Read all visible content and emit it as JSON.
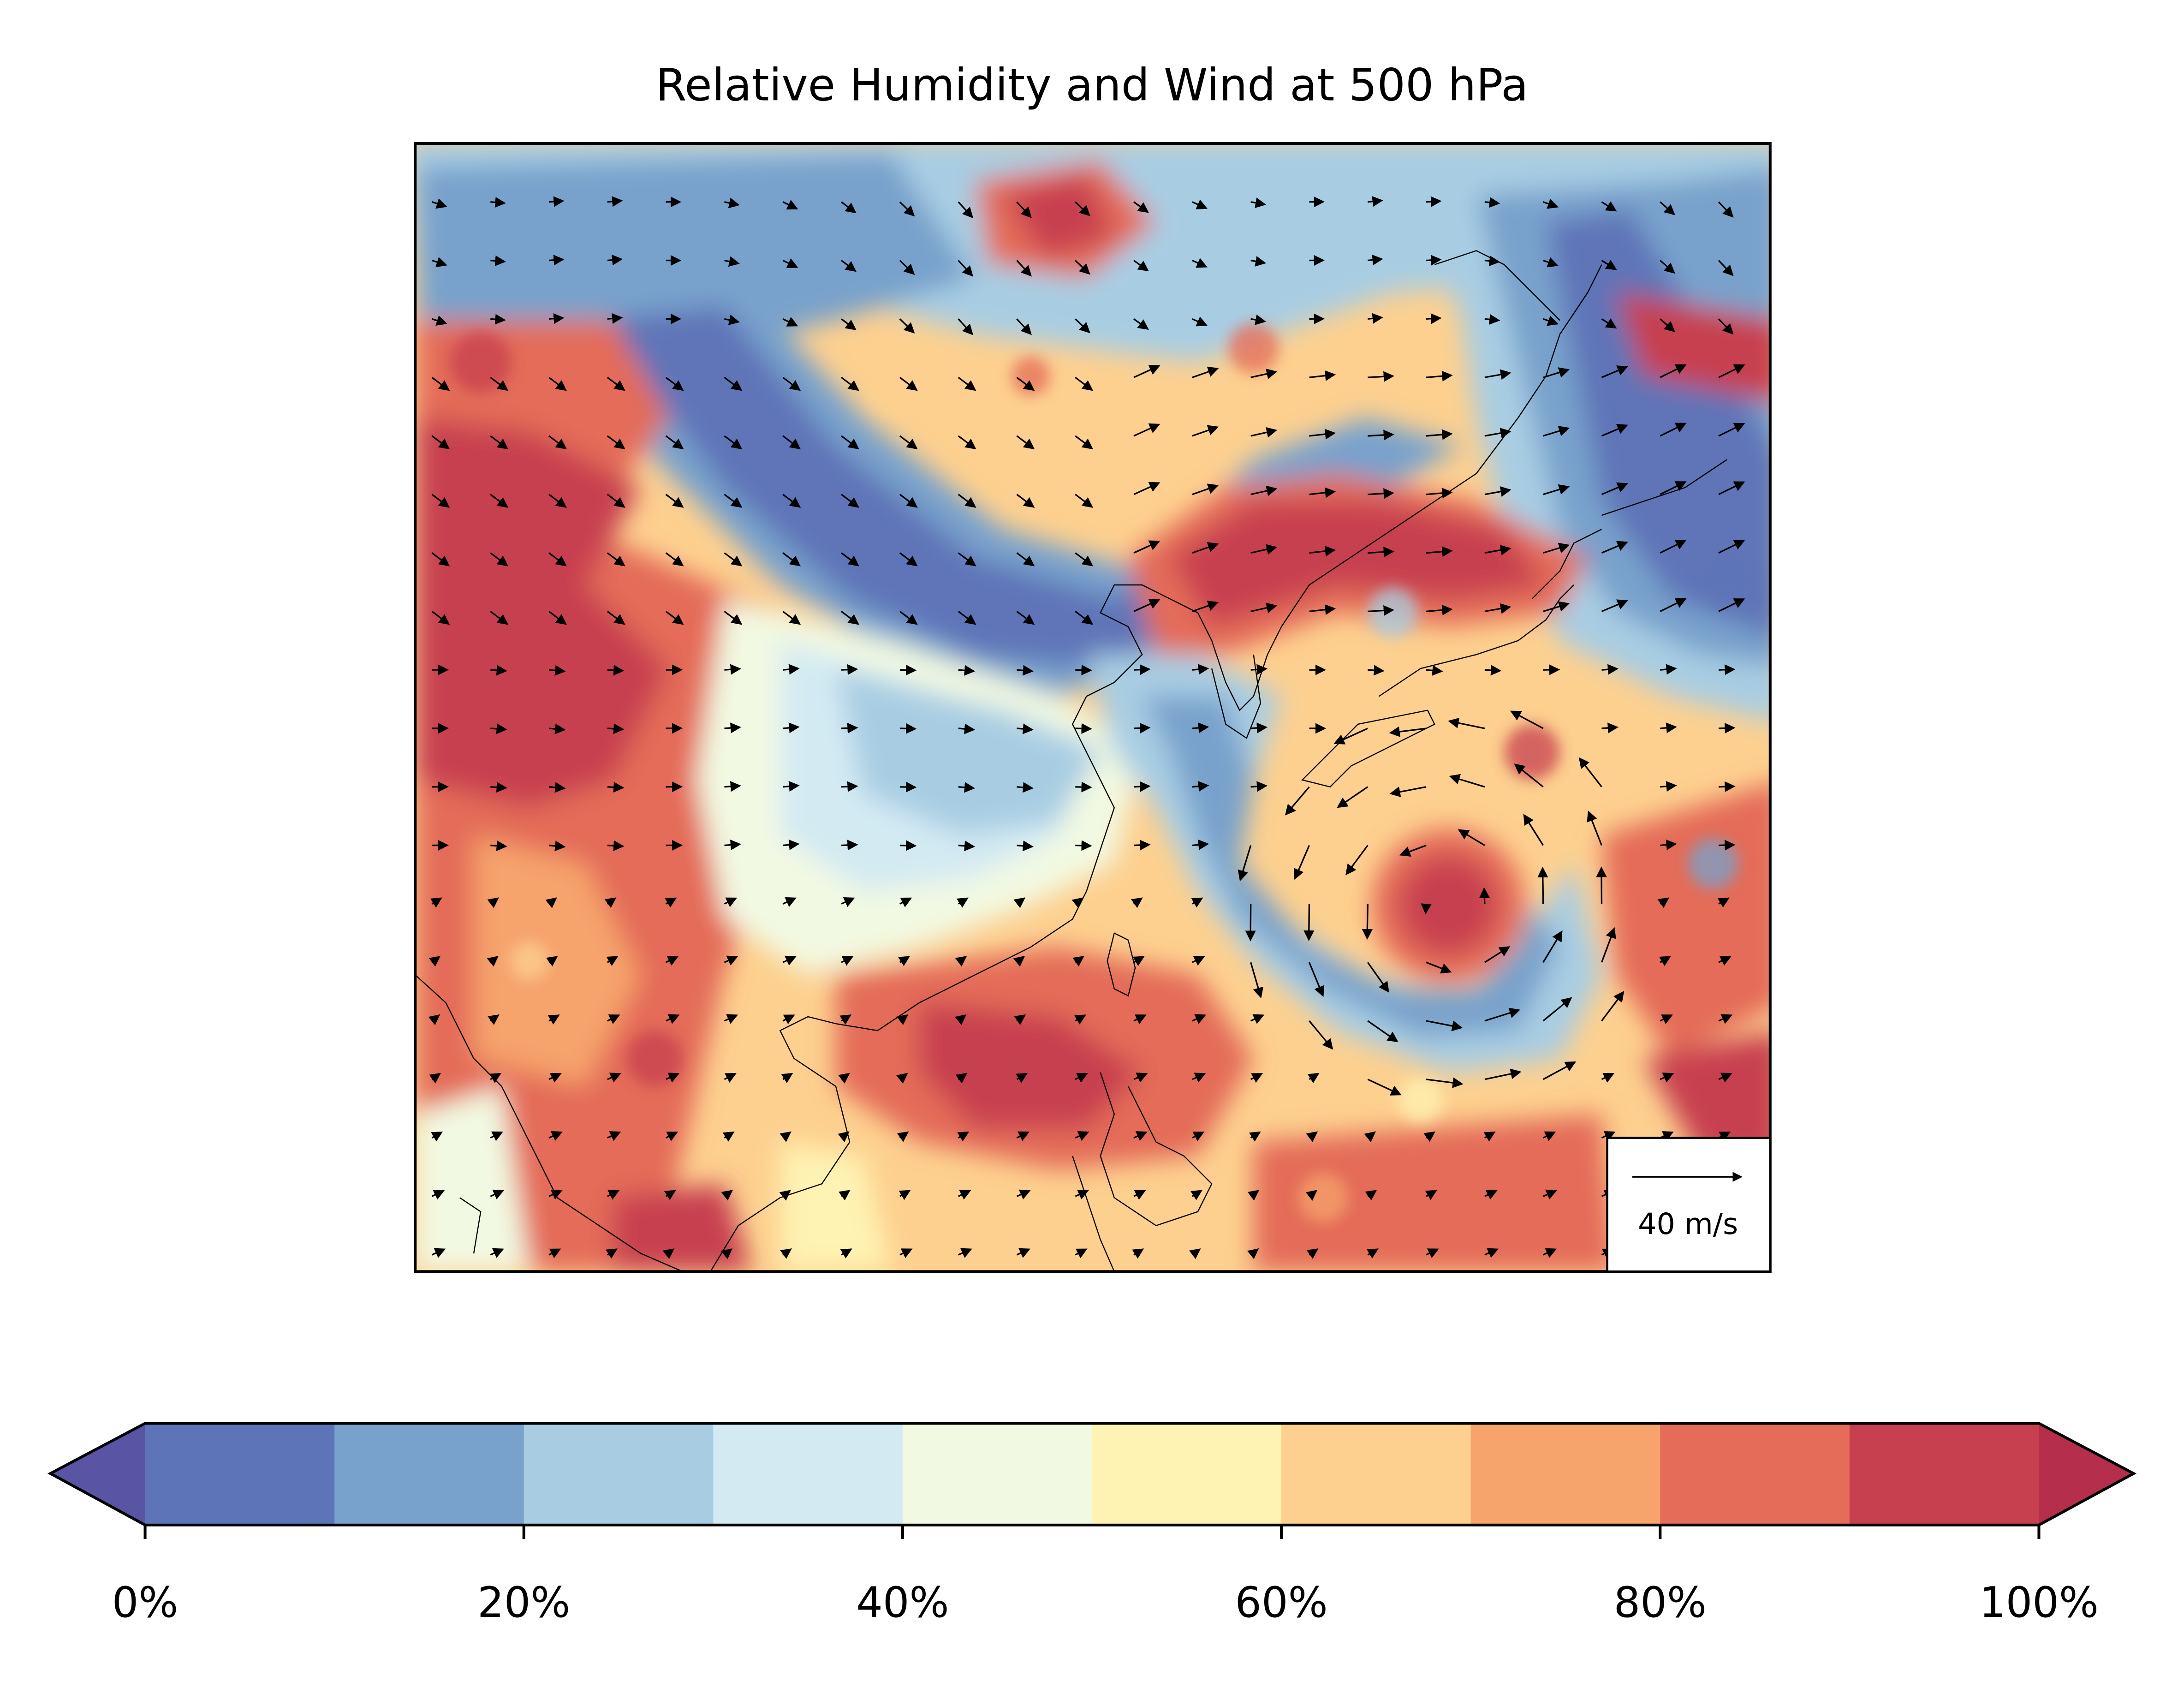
{
  "title": "Relative Humidity and Wind at 500 hPa",
  "quiver_key": {
    "label": "40 m/s",
    "reference_speed": 40,
    "unit": "m/s"
  },
  "colorbar": {
    "levels": [
      0,
      10,
      20,
      30,
      40,
      50,
      60,
      70,
      80,
      90,
      100
    ],
    "colors": [
      "#5e74b8",
      "#78a2cc",
      "#a8cde3",
      "#d3eaf3",
      "#f2f9e2",
      "#fef3b2",
      "#fdd08f",
      "#f6a36c",
      "#e46c58",
      "#c7404f"
    ],
    "under_color": "#5954a4",
    "over_color": "#b52e4c",
    "extend": "both",
    "tick_values": [
      0,
      20,
      40,
      60,
      80,
      100
    ],
    "tick_labels": [
      "0%",
      "20%",
      "40%",
      "60%",
      "80%",
      "100%"
    ]
  },
  "features": {
    "coastlines": true,
    "typhoon_center": "east of Taiwan, south of Japan",
    "circulation": "cyclonic"
  }
}
